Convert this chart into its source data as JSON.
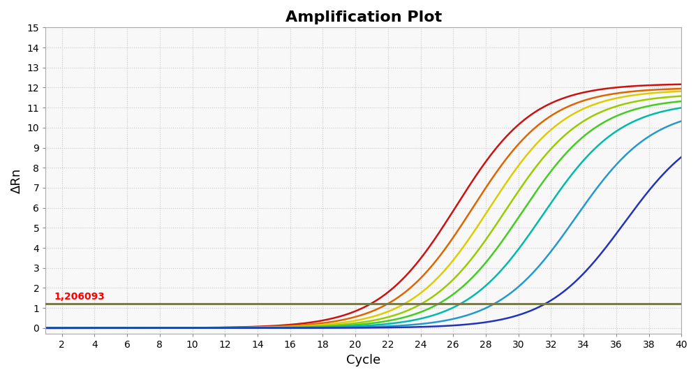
{
  "title": "Amplification Plot",
  "xlabel": "Cycle",
  "ylabel": "ΔRn",
  "xlim": [
    1,
    40
  ],
  "ylim": [
    -0.3,
    15
  ],
  "yticks": [
    0,
    1,
    2,
    3,
    4,
    5,
    6,
    7,
    8,
    9,
    10,
    11,
    12,
    13,
    14,
    15
  ],
  "xticks": [
    2,
    4,
    6,
    8,
    10,
    12,
    14,
    16,
    18,
    20,
    22,
    24,
    26,
    28,
    30,
    32,
    34,
    36,
    38,
    40
  ],
  "threshold": 1.206093,
  "threshold_color": "#7a7a50",
  "threshold_label": "1,206093",
  "background_color": "#f8f8f8",
  "grid_color": "#c8c8c8",
  "curves": [
    {
      "color": "#cc1111",
      "midpoint": 26.2,
      "steepness": 0.42,
      "max_val": 12.2
    },
    {
      "color": "#dd6600",
      "midpoint": 27.2,
      "steepness": 0.42,
      "max_val": 12.0
    },
    {
      "color": "#ddcc00",
      "midpoint": 28.2,
      "steepness": 0.42,
      "max_val": 11.9
    },
    {
      "color": "#99cc00",
      "midpoint": 29.2,
      "steepness": 0.42,
      "max_val": 11.7
    },
    {
      "color": "#44cc22",
      "midpoint": 30.2,
      "steepness": 0.42,
      "max_val": 11.5
    },
    {
      "color": "#00bbaa",
      "midpoint": 31.5,
      "steepness": 0.42,
      "max_val": 11.3
    },
    {
      "color": "#2299cc",
      "midpoint": 33.5,
      "steepness": 0.42,
      "max_val": 11.0
    },
    {
      "color": "#2233bb",
      "midpoint": 36.5,
      "steepness": 0.42,
      "max_val": 10.5
    }
  ]
}
